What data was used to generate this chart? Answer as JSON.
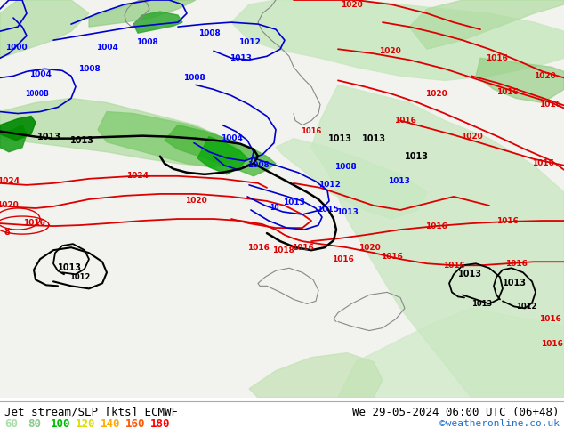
{
  "title_left": "Jet stream/SLP [kts] ECMWF",
  "title_right": "We 29-05-2024 06:00 UTC (06+48)",
  "watermark": "©weatheronline.co.uk",
  "legend_values": [
    "60",
    "80",
    "100",
    "120",
    "140",
    "160",
    "180"
  ],
  "legend_colors": [
    "#aaddaa",
    "#88cc88",
    "#00bb00",
    "#dddd00",
    "#ffaa00",
    "#ff5500",
    "#ff0000"
  ],
  "bg_color": "#f5f5f0",
  "map_bg": "#f0f0eb",
  "figsize": [
    6.34,
    4.9
  ],
  "dpi": 100,
  "bottom_bar_color": "#ffffff",
  "font_size_title": 9,
  "font_size_legend": 9,
  "font_size_watermark": 8,
  "watermark_color": "#1e6fcc"
}
